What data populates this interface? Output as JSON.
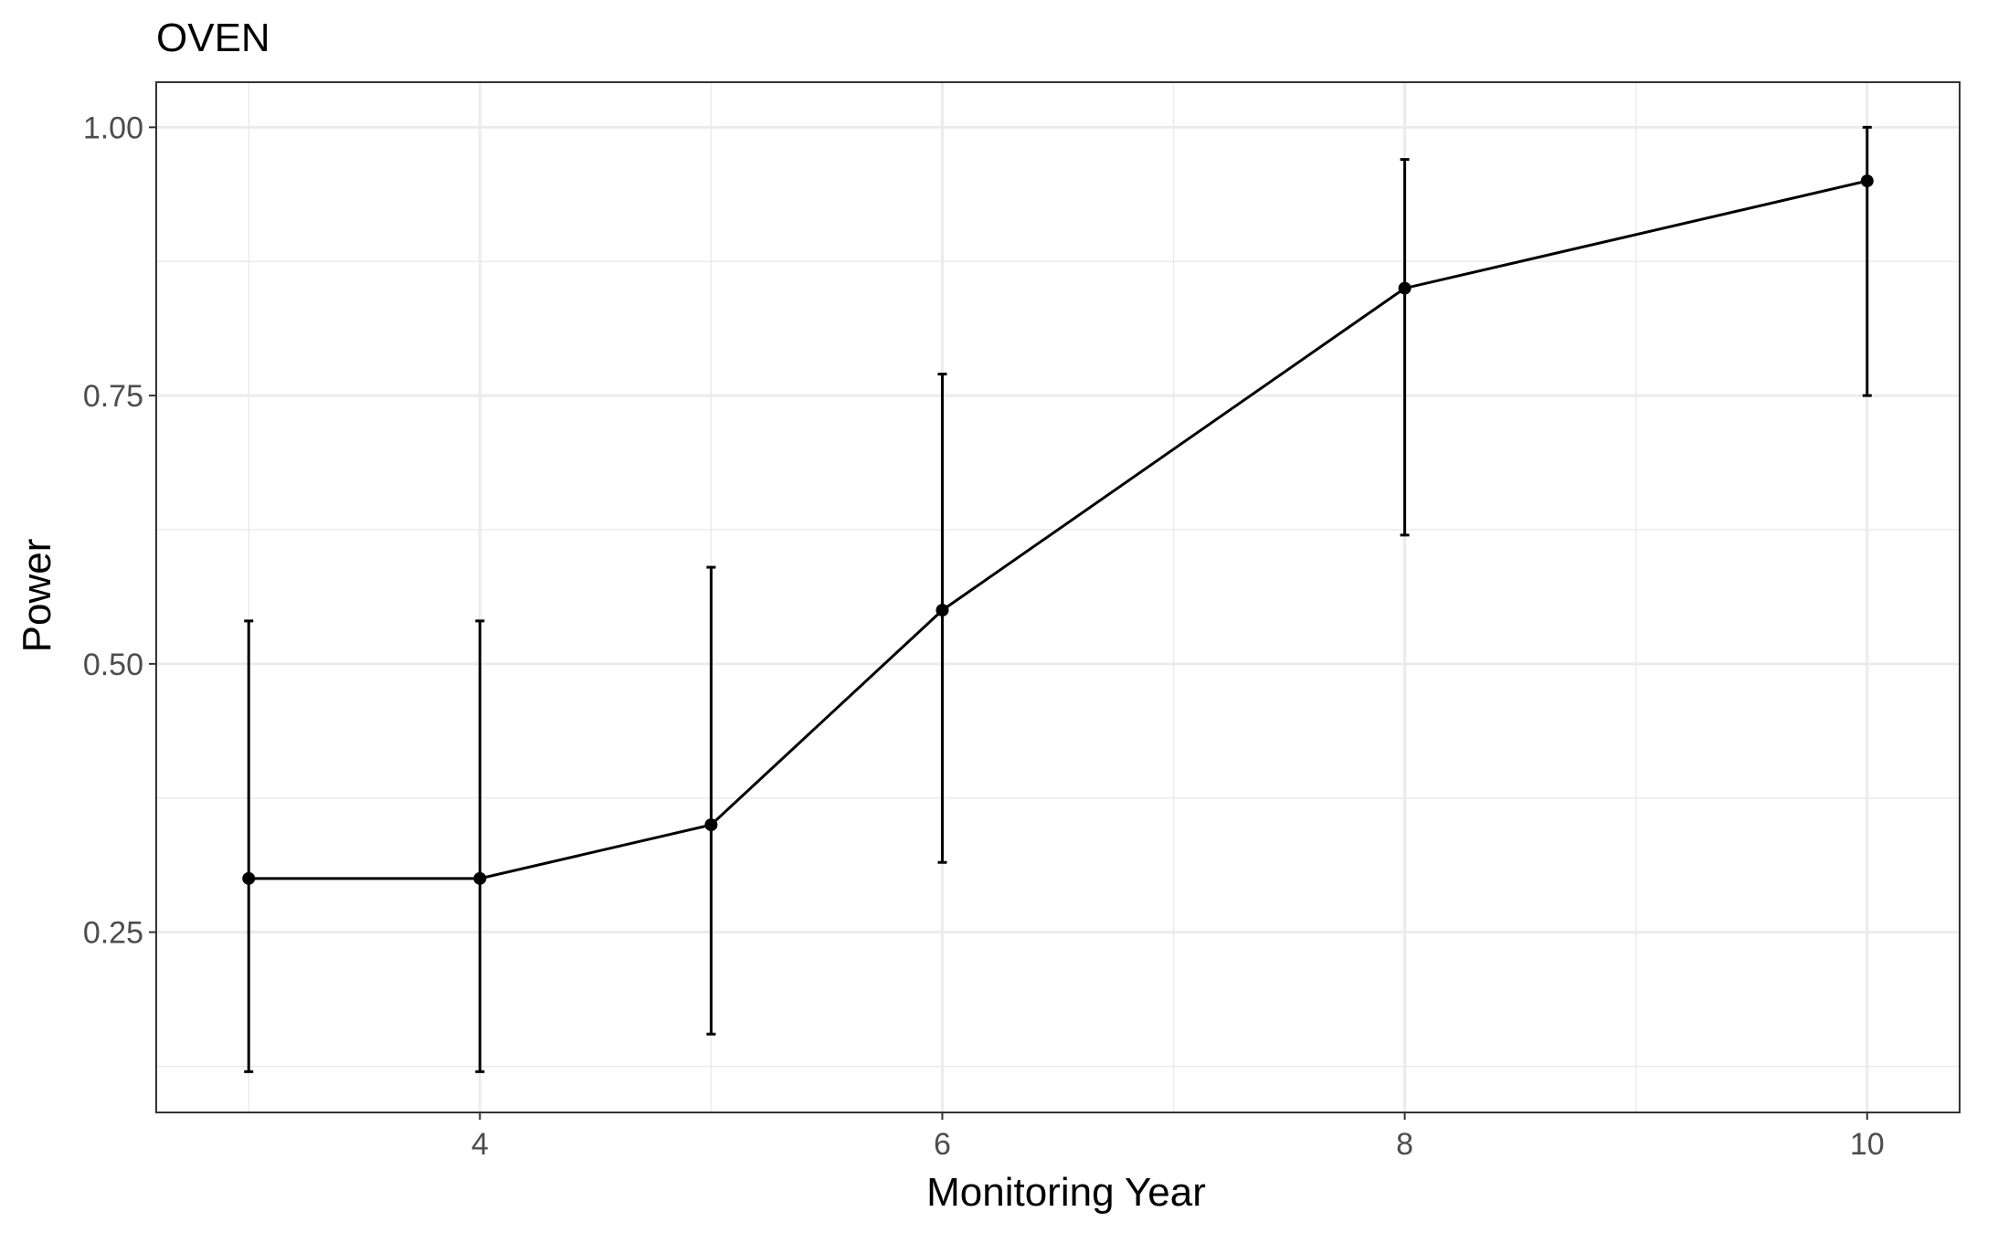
{
  "chart_data": {
    "type": "line",
    "title": "OVEN",
    "xlabel": "Monitoring Year",
    "ylabel": "Power",
    "xlim": [
      2.6,
      10.4
    ],
    "ylim": [
      0.082,
      1.042
    ],
    "x_ticks": [
      4,
      6,
      8,
      10
    ],
    "y_ticks": [
      0.25,
      0.5,
      0.75,
      1.0
    ],
    "x_tick_labels": [
      "4",
      "6",
      "8",
      "10"
    ],
    "y_tick_labels": [
      "0.25",
      "0.50",
      "0.75",
      "1.00"
    ],
    "grid": true,
    "series": [
      {
        "x": [
          3,
          4,
          5,
          6,
          8,
          10
        ],
        "y": [
          0.3,
          0.3,
          0.35,
          0.55,
          0.85,
          0.95
        ],
        "error_low": [
          0.12,
          0.12,
          0.155,
          0.315,
          0.62,
          0.75
        ],
        "error_high": [
          0.54,
          0.54,
          0.59,
          0.77,
          0.97,
          1.0
        ]
      }
    ],
    "colors": {
      "line": "#000000",
      "grid": "#ebebeb",
      "panel_border": "#333333",
      "tick_text": "#4d4d4d"
    }
  }
}
